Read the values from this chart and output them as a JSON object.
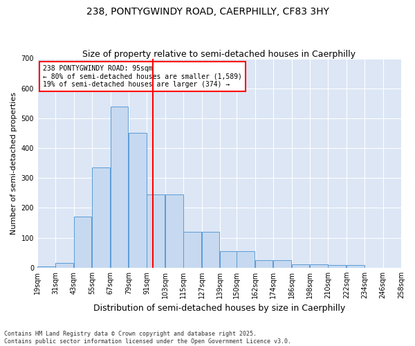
{
  "title_line1": "238, PONTYGWINDY ROAD, CAERPHILLY, CF83 3HY",
  "title_line2": "Size of property relative to semi-detached houses in Caerphilly",
  "xlabel": "Distribution of semi-detached houses by size in Caerphilly",
  "ylabel": "Number of semi-detached properties",
  "footnote": "Contains HM Land Registry data © Crown copyright and database right 2025.\nContains public sector information licensed under the Open Government Licence v3.0.",
  "bins": [
    19,
    31,
    43,
    55,
    67,
    79,
    91,
    103,
    115,
    127,
    139,
    150,
    162,
    174,
    186,
    198,
    210,
    222,
    234,
    246,
    258
  ],
  "bar_values": [
    5,
    15,
    170,
    335,
    540,
    450,
    245,
    245,
    120,
    120,
    55,
    55,
    25,
    25,
    12,
    12,
    8,
    8,
    0,
    0
  ],
  "bar_color": "#c6d9f0",
  "bar_edge_color": "#5b9bd5",
  "marker_value": 95,
  "marker_color": "red",
  "annotation_title": "238 PONTYGWINDY ROAD: 95sqm",
  "annotation_line1": "← 80% of semi-detached houses are smaller (1,589)",
  "annotation_line2": "19% of semi-detached houses are larger (374) →",
  "ylim": [
    0,
    700
  ],
  "yticks": [
    0,
    100,
    200,
    300,
    400,
    500,
    600,
    700
  ],
  "background_color": "#dce6f5",
  "grid_color": "white",
  "title_fontsize": 10,
  "subtitle_fontsize": 9,
  "ylabel_fontsize": 8,
  "xlabel_fontsize": 9,
  "annot_fontsize": 7,
  "tick_fontsize": 7,
  "footnote_fontsize": 6
}
